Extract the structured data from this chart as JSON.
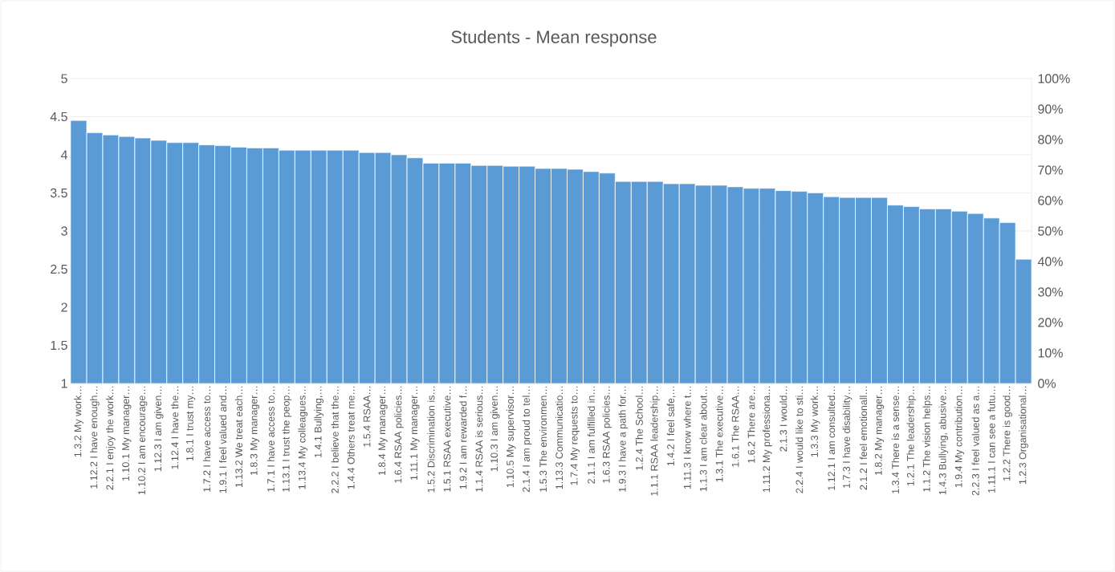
{
  "chart_data": {
    "type": "bar",
    "title": "Students - Mean response",
    "categories": [
      "1.3.2 My work…",
      "1.12.2 I have enough…",
      "2.2.1 I enjoy the work…",
      "1.10.1 My manager…",
      "1.10.2 I am encourage…",
      "1.12.3 I am given…",
      "1.12.4 I have the…",
      "1.8.1 I trust my…",
      "1.7.2 I have access to…",
      "1.9.1 I feel valued and…",
      "1.13.2 We treat each…",
      "1.8.3 My manager…",
      "1.7.1 I have access to…",
      "1.13.1 I trust the peop…",
      "1.13.4 My colleagues…",
      "1.4.1 Bullying,…",
      "2.2.2 I believe that the…",
      "1.4.4 Others treat me…",
      "1.5.4 RSAA…",
      "1.8.4 My manager…",
      "1.6.4 RSAA policies…",
      "1.11.1 My manager…",
      "1.5.2 Discrimination is…",
      "1.5.1 RSAA executive…",
      "1.9.2 I am rewarded f…",
      "1.1.4 RSAA is serious…",
      "1.10.3 I am given…",
      "1.10.5 My supervisor…",
      "2.1.4 I am proud to tel…",
      "1.5.3 The environmen…",
      "1.13.3 Communicatio…",
      "1.7.4 My requests to…",
      "2.1.1 I am fulfilled in…",
      "1.6.3 RSAA policies…",
      "1.9.3 I have a path for…",
      "1.2.4 The School…",
      "1.1.1 RSAA leadership…",
      "1.4.2 I feel safe,…",
      "1.11.3 I know where t…",
      "1.1.3 I am clear about…",
      "1.3.1 The executive…",
      "1.6.1 The RSAA…",
      "1.6.2 There are…",
      "1.11.2 My professiona…",
      "2.1.3 I would…",
      "2.2.4 I would like to sti…",
      "1.3.3 My work…",
      "1.12.1 I am consulted…",
      "1.7.3 I have disability…",
      "2.1.2 I feel emotionall…",
      "1.8.2 My manager…",
      "1.3.4 There is a sense…",
      "1.2.1 The leadership…",
      "1.1.2 The vision helps…",
      "1.4.3 Bullying, abusive…",
      "1.9.4 My contribution…",
      "2.2.3 I feel valued as a…",
      "1.11.1 I can see a futu…",
      "1.2.2 There is good…",
      "1.2.3 Organisational…"
    ],
    "values": [
      4.45,
      4.29,
      4.26,
      4.24,
      4.22,
      4.19,
      4.16,
      4.16,
      4.13,
      4.12,
      4.1,
      4.09,
      4.09,
      4.06,
      4.06,
      4.06,
      4.06,
      4.06,
      4.03,
      4.03,
      4.0,
      3.96,
      3.89,
      3.89,
      3.89,
      3.86,
      3.86,
      3.85,
      3.85,
      3.82,
      3.82,
      3.81,
      3.78,
      3.76,
      3.65,
      3.65,
      3.65,
      3.62,
      3.62,
      3.6,
      3.6,
      3.58,
      3.56,
      3.56,
      3.53,
      3.52,
      3.5,
      3.45,
      3.44,
      3.44,
      3.44,
      3.34,
      3.32,
      3.29,
      3.29,
      3.26,
      3.23,
      3.17,
      3.11,
      2.63
    ],
    "color": "#5b9bd5",
    "ylim": [
      1,
      5
    ],
    "yticks": [
      1,
      1.5,
      2,
      2.5,
      3,
      3.5,
      4,
      4.5,
      5
    ],
    "y2lim": [
      0,
      100
    ],
    "y2ticks": [
      {
        "value": 0,
        "label": "0%"
      },
      {
        "value": 10,
        "label": "10%"
      },
      {
        "value": 20,
        "label": "20%"
      },
      {
        "value": 30,
        "label": "30%"
      },
      {
        "value": 40,
        "label": "40%"
      },
      {
        "value": 50,
        "label": "50%"
      },
      {
        "value": 60,
        "label": "60%"
      },
      {
        "value": 70,
        "label": "70%"
      },
      {
        "value": 80,
        "label": "80%"
      },
      {
        "value": 90,
        "label": "90%"
      },
      {
        "value": 100,
        "label": "100%"
      }
    ],
    "grid": "y"
  }
}
